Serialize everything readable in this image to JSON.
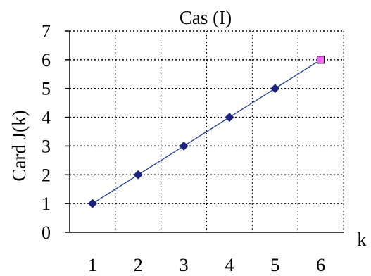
{
  "chart_data": {
    "type": "line",
    "title": "Cas (I)",
    "xlabel": "k",
    "ylabel": "Card J(k)",
    "x": [
      1,
      2,
      3,
      4,
      5,
      6
    ],
    "xlim": [
      0.5,
      6.5
    ],
    "ylim": [
      0,
      7
    ],
    "x_ticks": [
      "1",
      "2",
      "3",
      "4",
      "5",
      "6"
    ],
    "y_ticks": [
      "0",
      "1",
      "2",
      "3",
      "4",
      "5",
      "6",
      "7"
    ],
    "grid": true,
    "series": [
      {
        "values": [
          1,
          2,
          3,
          4,
          5,
          6
        ],
        "line_color": "#1f3a93",
        "marker": "diamond",
        "marker_color": "#1a237e",
        "last_point_marker": "square",
        "last_point_color": "#ff66ff"
      }
    ]
  }
}
